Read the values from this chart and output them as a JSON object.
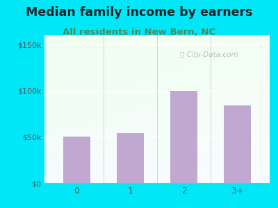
{
  "title": "Median family income by earners",
  "subtitle": "All residents in New Bern, NC",
  "categories": [
    "0",
    "1",
    "2",
    "3+"
  ],
  "values": [
    50000,
    54000,
    100000,
    84000
  ],
  "bar_color": "#c0a8d0",
  "title_fontsize": 12.5,
  "subtitle_fontsize": 9.5,
  "title_color": "#222222",
  "subtitle_color": "#558855",
  "background_outer": "#00e8f8",
  "ylim": [
    0,
    160000
  ],
  "yticks": [
    0,
    50000,
    100000,
    150000
  ],
  "ytick_labels": [
    "$0",
    "$50k",
    "$100k",
    "$150k"
  ],
  "watermark": "Ⓜ City-Data.com"
}
